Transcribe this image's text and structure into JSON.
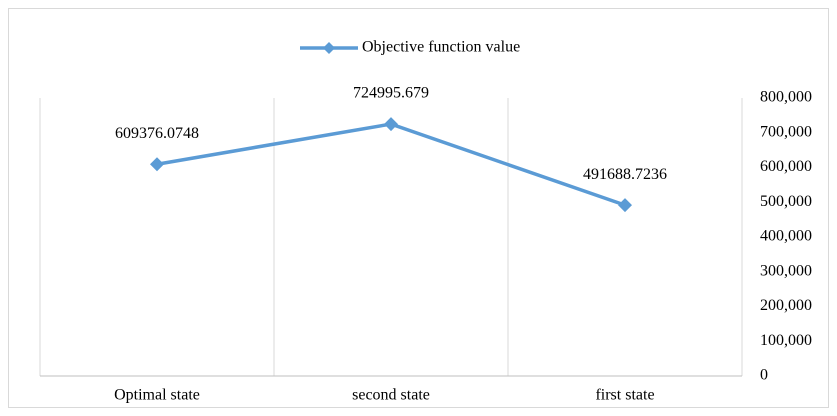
{
  "chart_data": {
    "type": "line",
    "categories": [
      "Optimal state",
      "second state",
      "first state"
    ],
    "series": [
      {
        "name": "Objective function value",
        "color": "#5b9bd5",
        "values": [
          609376.0748,
          724995.679,
          491688.7236
        ]
      }
    ],
    "ylim": [
      0,
      800000
    ],
    "yticks": [
      0,
      {
        "value": 100000,
        "label": "100,000"
      },
      {
        "value": 200000,
        "label": "200,000"
      },
      {
        "value": 300000,
        "label": "300,000"
      },
      {
        "value": 400000,
        "label": "400,000"
      },
      {
        "value": 500000,
        "label": "500,000"
      },
      {
        "value": 600000,
        "label": "600,000"
      },
      {
        "value": 700000,
        "label": "700,000"
      },
      {
        "value": 800000,
        "label": "800,000"
      }
    ],
    "grid": true,
    "legend": "top"
  }
}
